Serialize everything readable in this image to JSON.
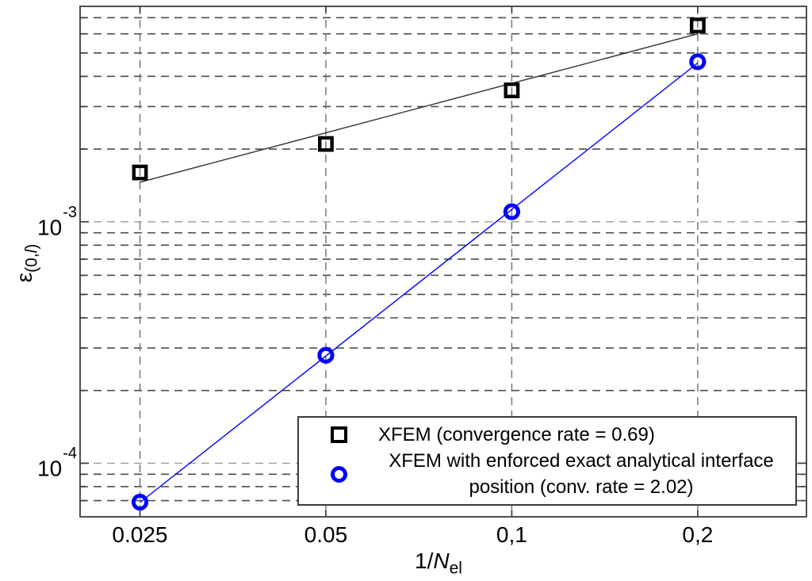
{
  "figure": {
    "background": "#ffffff"
  },
  "axes": {
    "x_label": {
      "prefix": "1/",
      "italic": "N",
      "sub": "el"
    },
    "y_label": {
      "symbol": "ε",
      "sub_prefix": "(0,",
      "sub_italic": "l",
      "sub_suffix": ")"
    }
  },
  "chart_data": {
    "type": "line",
    "x_scale": "log",
    "y_scale": "log",
    "xlim": [
      0.02,
      0.3
    ],
    "ylim": [
      6e-05,
      0.0078
    ],
    "grid": "dashed gray; vertical lines at x ticks, horizontal lines at all log minor and major ticks",
    "legend_position": "lower right inside plot, white opaque box",
    "x_ticks": [
      {
        "value": 0.025,
        "label": "0.025"
      },
      {
        "value": 0.05,
        "label": "0.05"
      },
      {
        "value": 0.1,
        "label": "0,1"
      },
      {
        "value": 0.2,
        "label": "0,2"
      }
    ],
    "y_ticks": [
      {
        "value": 0.001,
        "label_base": "10",
        "label_exp": "-3"
      },
      {
        "value": 0.0001,
        "label_base": "10",
        "label_exp": "-4"
      }
    ],
    "series": [
      {
        "name": "XFEM (convergence rate = 0.69)",
        "marker": "square",
        "color": "#000000",
        "line_color": "#333333",
        "fit_line": true,
        "x": [
          0.025,
          0.05,
          0.1,
          0.2
        ],
        "y": [
          0.0016,
          0.0021,
          0.0035,
          0.0065
        ]
      },
      {
        "name": "XFEM with enforced exact analytical interface position (conv. rate = 2.02)",
        "marker": "circle",
        "color": "#0000ff",
        "line_color": "#0000ff",
        "fit_line": true,
        "x": [
          0.025,
          0.05,
          0.1,
          0.2
        ],
        "y": [
          6.9e-05,
          0.00028,
          0.0011,
          0.0046
        ]
      }
    ]
  }
}
